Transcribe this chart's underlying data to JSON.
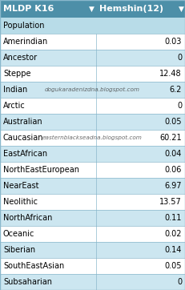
{
  "title_left": "MLDP K16",
  "title_right": "Hemshin(12)",
  "header_bg": "#4d8fa8",
  "header_text_color": "#ffffff",
  "col_header_bg": "#b8dce8",
  "row_odd_bg": "#ffffff",
  "row_even_bg": "#cce6f0",
  "row_text_color": "#000000",
  "border_color": "#8ab8cc",
  "watermark1": "dogukaradenizdna.blogspot.com",
  "watermark2": "easternblackseadna.blogspot.com",
  "populations": [
    "Population",
    "Amerindian",
    "Ancestor",
    "Steppe",
    "Indian",
    "Arctic",
    "Australian",
    "Caucasian",
    "EastAfrican",
    "NorthEastEuropean",
    "NearEast",
    "Neolithic",
    "NorthAfrican",
    "Oceanic",
    "Siberian",
    "SouthEastAsian",
    "Subsaharian"
  ],
  "values": [
    "",
    "0.03",
    "0",
    "12.48",
    "6.2",
    "0",
    "0.05",
    "60.21",
    "0.04",
    "0.06",
    "6.97",
    "13.57",
    "0.11",
    "0.02",
    "0.14",
    "0.05",
    "0"
  ],
  "fig_width": 2.31,
  "fig_height": 3.62,
  "dpi": 100
}
